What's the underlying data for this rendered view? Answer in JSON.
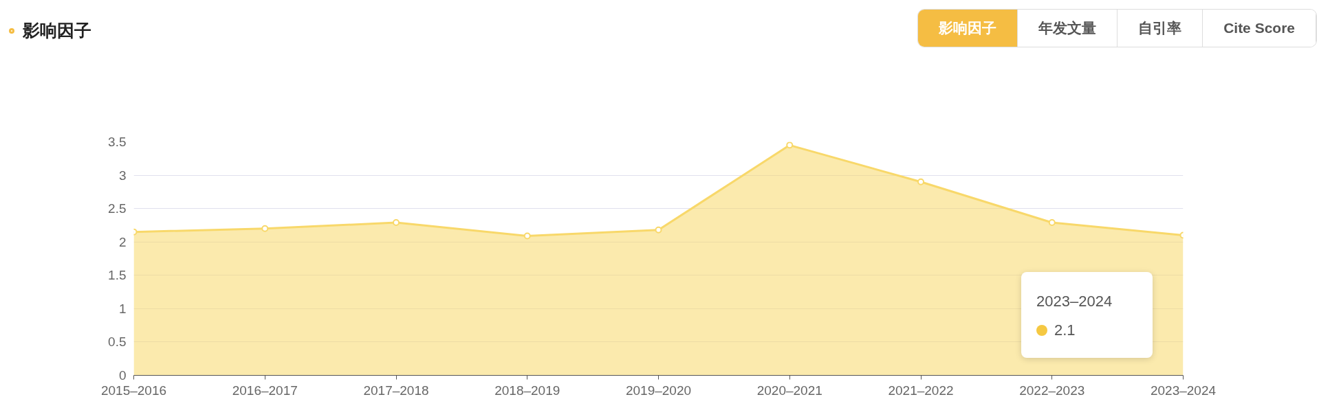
{
  "chart_data": {
    "type": "area",
    "title": "影响因子",
    "categories": [
      "2015–2016",
      "2016–2017",
      "2017–2018",
      "2018–2019",
      "2019–2020",
      "2020–2021",
      "2021–2022",
      "2022–2023",
      "2023–2024"
    ],
    "series": [
      {
        "color": "#f8d86a",
        "values": [
          2.15,
          2.2,
          2.29,
          2.09,
          2.18,
          3.45,
          2.9,
          2.29,
          2.1
        ]
      }
    ],
    "ylim": [
      0,
      3.5
    ],
    "yticks": [
      0,
      0.5,
      1,
      1.5,
      2,
      2.5,
      3,
      3.5
    ],
    "grid": "y",
    "marker": "circle",
    "legend": false,
    "annotations": [
      "影响因子",
      "年发文量",
      "自引率",
      "Cite Score",
      "2023–2024",
      "2.1"
    ]
  }
}
